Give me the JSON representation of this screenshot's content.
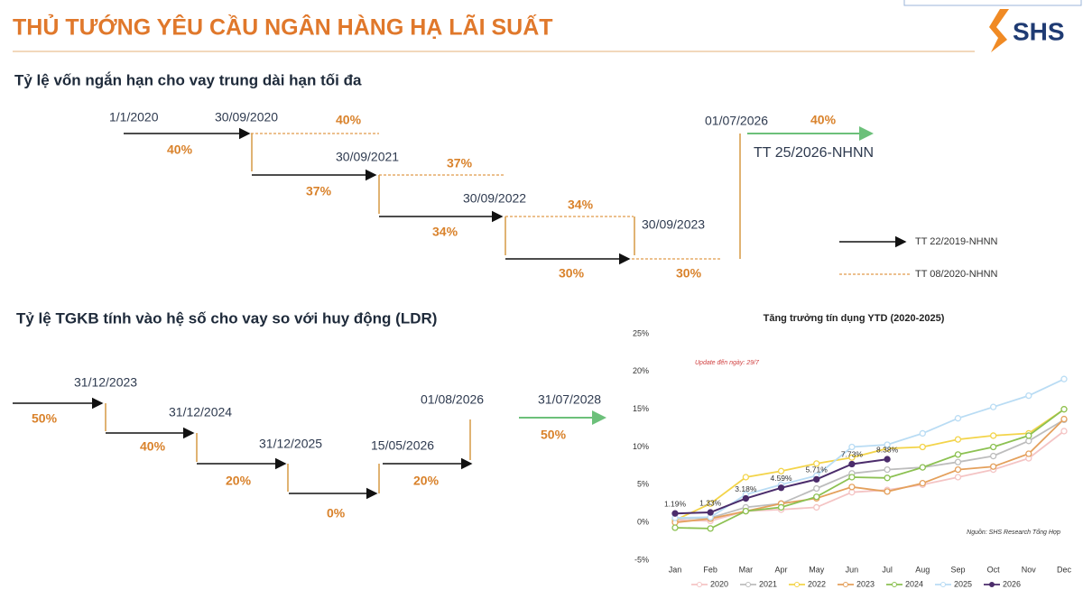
{
  "header": {
    "title": "THỦ TƯỚNG YÊU CẦU NGÂN HÀNG HẠ LÃI SUẤT",
    "logo": "SHS"
  },
  "section1": {
    "title": "Tỷ lệ vốn ngắn hạn cho vay trung dài hạn tối đa",
    "dates": [
      "1/1/2020",
      "30/09/2020",
      "30/09/2021",
      "30/09/2022",
      "30/09/2023",
      "01/07/2026"
    ],
    "rates": [
      "40%",
      "40%",
      "37%",
      "37%",
      "34%",
      "34%",
      "30%",
      "30%",
      "40%"
    ],
    "regulation": "TT 25/2026-NHNN",
    "legend": [
      "TT 22/2019-NHNN",
      "TT 08/2020-NHNN"
    ]
  },
  "section2": {
    "title": "Tỷ lệ TGKB tính vào hệ số cho vay so với huy động (LDR)",
    "dates": [
      "31/12/2023",
      "31/12/2024",
      "31/12/2025",
      "15/05/2026",
      "01/08/2026",
      "31/07/2028"
    ],
    "rates": [
      "50%",
      "40%",
      "20%",
      "0%",
      "20%",
      "50%"
    ]
  },
  "chart_data": {
    "type": "line",
    "title": "Tăng trưởng tín dụng YTD (2020-2025)",
    "annotation": "Update đến ngày: 29/7",
    "source": "Nguồn: SHS Research Tổng Hợp",
    "categories": [
      "Jan",
      "Feb",
      "Mar",
      "Apr",
      "May",
      "Jun",
      "Jul",
      "Aug",
      "Sep",
      "Oct",
      "Nov",
      "Dec"
    ],
    "ylim": [
      -5,
      25
    ],
    "yticks": [
      {
        "value": -5,
        "label": "-5%"
      },
      {
        "value": 0,
        "label": "0%"
      },
      {
        "value": 5,
        "label": "5%"
      },
      {
        "value": 10,
        "label": "10%"
      },
      {
        "value": 15,
        "label": "15%"
      },
      {
        "value": 20,
        "label": "20%"
      },
      {
        "value": 25,
        "label": "25%"
      }
    ],
    "grid": false,
    "legend": "bottom",
    "series": [
      {
        "name": "2020",
        "color": "#f4c4c4",
        "values": [
          0.3,
          0.2,
          1.5,
          1.7,
          2.0,
          4.0,
          4.3,
          5.0,
          6.0,
          7.0,
          8.5,
          12.1
        ]
      },
      {
        "name": "2021",
        "color": "#bdbdbd",
        "values": [
          0.5,
          0.6,
          2.0,
          2.5,
          4.5,
          6.5,
          7.0,
          7.3,
          8.0,
          8.8,
          10.8,
          13.6
        ]
      },
      {
        "name": "2022",
        "color": "#f3d44a",
        "values": [
          0.3,
          2.5,
          6.0,
          6.8,
          7.8,
          8.6,
          9.8,
          10.0,
          11.0,
          11.5,
          11.8,
          15.0
        ]
      },
      {
        "name": "2023",
        "color": "#e4a05c",
        "values": [
          0.0,
          0.5,
          1.5,
          2.5,
          3.2,
          4.7,
          4.1,
          5.2,
          7.0,
          7.4,
          9.1,
          13.7
        ]
      },
      {
        "name": "2024",
        "color": "#8cc152",
        "values": [
          -0.7,
          -0.8,
          1.5,
          2.0,
          3.4,
          6.0,
          5.9,
          7.3,
          9.0,
          10.0,
          11.5,
          15.0
        ]
      },
      {
        "name": "2025",
        "color": "#b9dcf4",
        "values": [
          0.6,
          0.7,
          3.7,
          5.0,
          6.2,
          10.0,
          10.3,
          11.8,
          13.8,
          15.3,
          16.8,
          19.0
        ]
      },
      {
        "name": "2026",
        "color": "#4b2c6b",
        "values": [
          1.19,
          1.33,
          3.18,
          4.59,
          5.71,
          7.73,
          8.38,
          null,
          null,
          null,
          null,
          null
        ],
        "value_labels": [
          "1.19%",
          "1.33%",
          "3.18%",
          "4.59%",
          "5.71%",
          "7.73%",
          "8.38%",
          null,
          null,
          null,
          null,
          null
        ]
      }
    ]
  }
}
